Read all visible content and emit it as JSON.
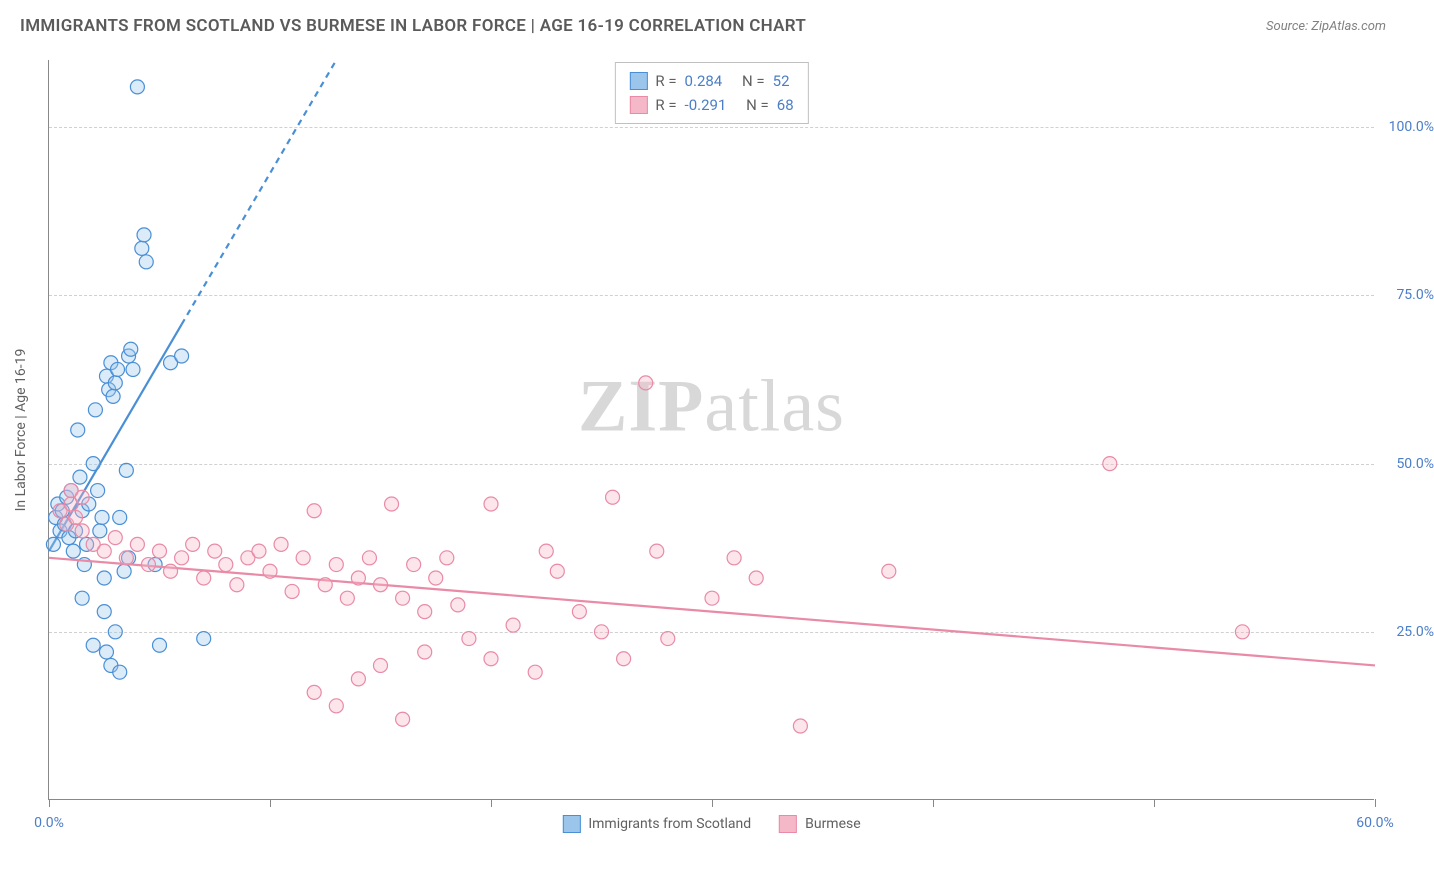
{
  "title": "IMMIGRANTS FROM SCOTLAND VS BURMESE IN LABOR FORCE | AGE 16-19 CORRELATION CHART",
  "source": "Source: ZipAtlas.com",
  "watermark_left": "ZIP",
  "watermark_right": "atlas",
  "yaxis_label": "In Labor Force | Age 16-19",
  "chart": {
    "type": "scatter",
    "background_color": "#ffffff",
    "grid_color": "#d0d0d0",
    "axis_color": "#888888",
    "xlim": [
      0,
      60
    ],
    "ylim": [
      0,
      110
    ],
    "xtick_values": [
      0,
      10,
      20,
      30,
      40,
      50,
      60
    ],
    "xtick_labels": {
      "0": "0.0%",
      "60": "60.0%"
    },
    "ytick_values": [
      25,
      50,
      75,
      100
    ],
    "ytick_labels": {
      "25": "25.0%",
      "50": "50.0%",
      "75": "75.0%",
      "100": "100.0%"
    },
    "marker_radius": 7,
    "marker_stroke_width": 1.2,
    "marker_fill_opacity": 0.35,
    "trend_line_width": 2.2,
    "trend_dash": "6,5"
  },
  "series": [
    {
      "id": "scotland",
      "label": "Immigrants from Scotland",
      "color_stroke": "#4a8fd6",
      "color_fill": "#9cc5ec",
      "R_label": "R =",
      "R_value": "0.284",
      "N_label": "N =",
      "N_value": "52",
      "trend": {
        "x1": 0,
        "y1": 37,
        "x2": 13,
        "y2": 110,
        "dash_from_x": 6
      },
      "points": [
        [
          0.2,
          38
        ],
        [
          0.3,
          42
        ],
        [
          0.4,
          44
        ],
        [
          0.5,
          40
        ],
        [
          0.6,
          43
        ],
        [
          0.7,
          41
        ],
        [
          0.8,
          45
        ],
        [
          0.9,
          39
        ],
        [
          1.0,
          46
        ],
        [
          1.1,
          37
        ],
        [
          1.2,
          40
        ],
        [
          1.3,
          55
        ],
        [
          1.4,
          48
        ],
        [
          1.5,
          43
        ],
        [
          1.6,
          35
        ],
        [
          1.7,
          38
        ],
        [
          1.8,
          44
        ],
        [
          2.0,
          50
        ],
        [
          2.1,
          58
        ],
        [
          2.2,
          46
        ],
        [
          2.3,
          40
        ],
        [
          2.4,
          42
        ],
        [
          2.5,
          33
        ],
        [
          2.6,
          63
        ],
        [
          2.7,
          61
        ],
        [
          2.8,
          65
        ],
        [
          2.9,
          60
        ],
        [
          3.0,
          62
        ],
        [
          3.1,
          64
        ],
        [
          3.2,
          42
        ],
        [
          3.5,
          49
        ],
        [
          3.6,
          66
        ],
        [
          3.7,
          67
        ],
        [
          3.8,
          64
        ],
        [
          4.0,
          106
        ],
        [
          4.2,
          82
        ],
        [
          4.3,
          84
        ],
        [
          4.4,
          80
        ],
        [
          1.5,
          30
        ],
        [
          2.0,
          23
        ],
        [
          2.5,
          28
        ],
        [
          2.6,
          22
        ],
        [
          2.8,
          20
        ],
        [
          3.0,
          25
        ],
        [
          3.2,
          19
        ],
        [
          3.4,
          34
        ],
        [
          3.6,
          36
        ],
        [
          4.8,
          35
        ],
        [
          5.0,
          23
        ],
        [
          7.0,
          24
        ],
        [
          5.5,
          65
        ],
        [
          6.0,
          66
        ]
      ]
    },
    {
      "id": "burmese",
      "label": "Burmese",
      "color_stroke": "#e98aa6",
      "color_fill": "#f5b8c9",
      "R_label": "R =",
      "R_value": "-0.291",
      "N_label": "N =",
      "N_value": "68",
      "trend": {
        "x1": 0,
        "y1": 36,
        "x2": 60,
        "y2": 20,
        "dash_from_x": 60
      },
      "points": [
        [
          0.5,
          43
        ],
        [
          0.8,
          41
        ],
        [
          1.0,
          44
        ],
        [
          1.2,
          42
        ],
        [
          1.5,
          40
        ],
        [
          2.0,
          38
        ],
        [
          2.5,
          37
        ],
        [
          3.0,
          39
        ],
        [
          3.5,
          36
        ],
        [
          4.0,
          38
        ],
        [
          4.5,
          35
        ],
        [
          5.0,
          37
        ],
        [
          5.5,
          34
        ],
        [
          6.0,
          36
        ],
        [
          6.5,
          38
        ],
        [
          7.0,
          33
        ],
        [
          7.5,
          37
        ],
        [
          8.0,
          35
        ],
        [
          8.5,
          32
        ],
        [
          9.0,
          36
        ],
        [
          9.5,
          37
        ],
        [
          10.0,
          34
        ],
        [
          10.5,
          38
        ],
        [
          11.0,
          31
        ],
        [
          11.5,
          36
        ],
        [
          12.0,
          43
        ],
        [
          12.5,
          32
        ],
        [
          13.0,
          35
        ],
        [
          13.5,
          30
        ],
        [
          14.0,
          33
        ],
        [
          14.5,
          36
        ],
        [
          15.0,
          32
        ],
        [
          15.5,
          44
        ],
        [
          16.0,
          30
        ],
        [
          16.5,
          35
        ],
        [
          17.0,
          28
        ],
        [
          17.5,
          33
        ],
        [
          18.0,
          36
        ],
        [
          18.5,
          29
        ],
        [
          12.0,
          16
        ],
        [
          13.0,
          14
        ],
        [
          14.0,
          18
        ],
        [
          15.0,
          20
        ],
        [
          16.0,
          12
        ],
        [
          17.0,
          22
        ],
        [
          19.0,
          24
        ],
        [
          20.0,
          21
        ],
        [
          21.0,
          26
        ],
        [
          22.0,
          19
        ],
        [
          22.5,
          37
        ],
        [
          23.0,
          34
        ],
        [
          24.0,
          28
        ],
        [
          25.0,
          25
        ],
        [
          25.5,
          45
        ],
        [
          26.0,
          21
        ],
        [
          27.0,
          62
        ],
        [
          27.5,
          37
        ],
        [
          28.0,
          24
        ],
        [
          30.0,
          30
        ],
        [
          31.0,
          36
        ],
        [
          32.0,
          33
        ],
        [
          34.0,
          11
        ],
        [
          38.0,
          34
        ],
        [
          48.0,
          50
        ],
        [
          54.0,
          25
        ],
        [
          20.0,
          44
        ],
        [
          1.0,
          46
        ],
        [
          1.5,
          45
        ]
      ]
    }
  ],
  "bottom_legend": [
    {
      "label": "Immigrants from Scotland",
      "color_stroke": "#4a8fd6",
      "color_fill": "#9cc5ec"
    },
    {
      "label": "Burmese",
      "color_stroke": "#e98aa6",
      "color_fill": "#f5b8c9"
    }
  ]
}
